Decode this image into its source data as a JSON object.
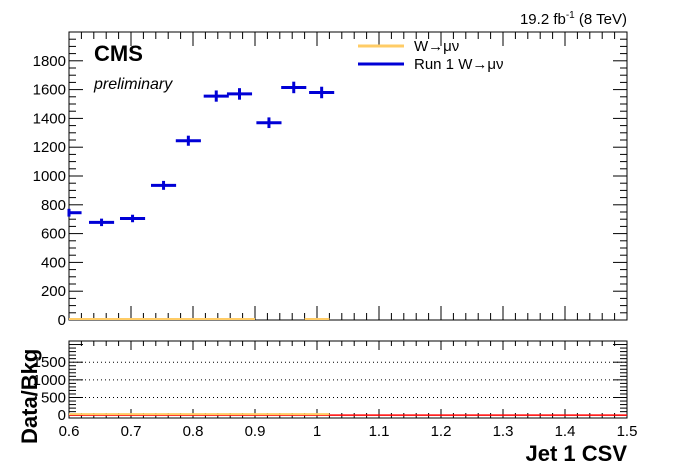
{
  "header": {
    "lumi_text": "19.2 fb",
    "lumi_exp": "-1",
    "energy_text": " (8 TeV)"
  },
  "labels": {
    "experiment": "CMS",
    "status": "preliminary"
  },
  "chart_data": [
    {
      "type": "scatter",
      "panel": "main",
      "xlim": [
        0.6,
        1.5
      ],
      "ylim": [
        0,
        2000
      ],
      "yticks": [
        "0",
        "200",
        "400",
        "600",
        "800",
        "1000",
        "1200",
        "1400",
        "1600",
        "1800"
      ],
      "ytick_values": [
        0,
        200,
        400,
        600,
        800,
        1000,
        1200,
        1400,
        1600,
        1800
      ],
      "legend": {
        "placement": "top-right",
        "entries": [
          {
            "label": "W→μν",
            "color": "#ffcc66",
            "style": "line"
          },
          {
            "label": "Run 1 W→μν",
            "color": "#0000d6",
            "style": "line"
          }
        ]
      },
      "series": [
        {
          "name": "Run 1 W→μν",
          "color": "#0000d6",
          "bin_width": 0.0405,
          "x": [
            0.6,
            0.6525,
            0.7025,
            0.7525,
            0.7925,
            0.8375,
            0.875,
            0.9225,
            0.9625,
            1.0075
          ],
          "y": [
            745,
            678,
            705,
            935,
            1245,
            1555,
            1570,
            1370,
            1615,
            1580
          ],
          "yerr": [
            27,
            26,
            26,
            31,
            35,
            39,
            40,
            37,
            40,
            40
          ]
        },
        {
          "name": "W→μν",
          "color": "#ffcc66",
          "x": [
            0.6,
            1.5
          ],
          "y": [
            0,
            0
          ]
        }
      ]
    },
    {
      "type": "line",
      "panel": "ratio",
      "xlim": [
        0.6,
        1.5
      ],
      "ylim": [
        -80,
        2100
      ],
      "ylabel": "Data/Bkg",
      "xlabel": "Jet 1 CSV",
      "yticks": [
        "0",
        "500",
        "1000",
        "1500"
      ],
      "ytick_values": [
        0,
        500,
        1000,
        1500
      ],
      "xticks": [
        "0.6",
        "0.7",
        "0.8",
        "0.9",
        "1",
        "1.1",
        "1.2",
        "1.3",
        "1.4",
        "1.5"
      ],
      "xtick_values": [
        0.6,
        0.7,
        0.8,
        0.9,
        1.0,
        1.1,
        1.2,
        1.3,
        1.4,
        1.5
      ],
      "grid": "horizontal dotted",
      "series": [
        {
          "name": "",
          "color": "#ff0000",
          "x": [
            0.6,
            1.5
          ],
          "y": [
            0,
            0
          ]
        }
      ]
    }
  ]
}
